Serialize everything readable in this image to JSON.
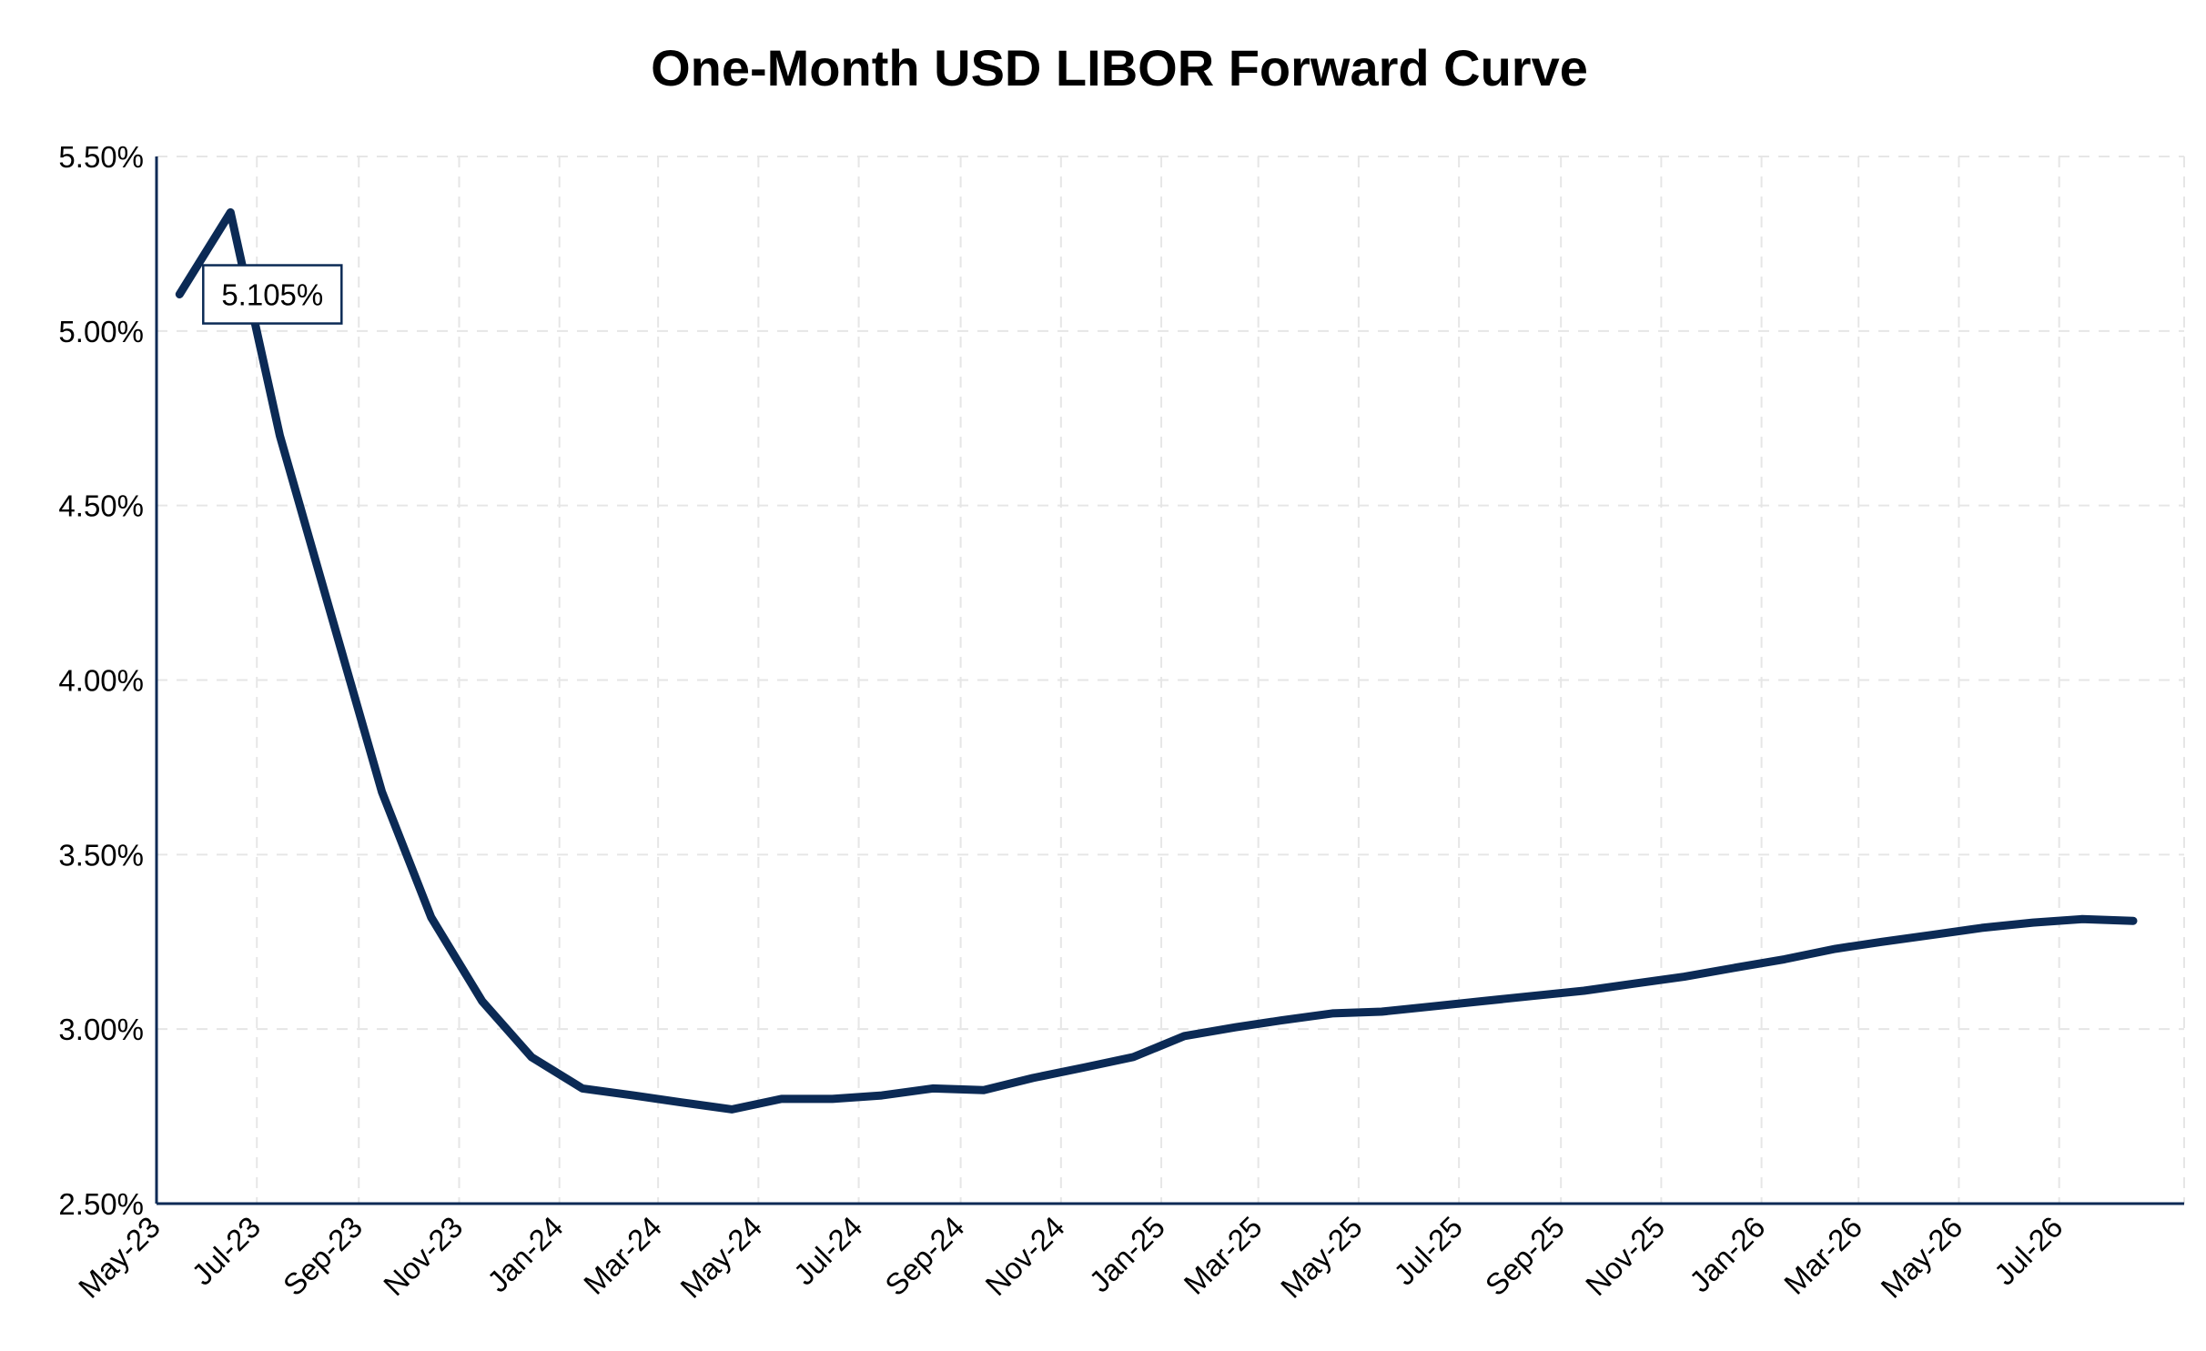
{
  "chart_data": {
    "type": "line",
    "title": "One-Month USD LIBOR Forward Curve",
    "xlabel": "",
    "ylabel": "",
    "ylim": [
      2.5,
      5.5
    ],
    "y_ticks": [
      "2.50%",
      "3.00%",
      "3.50%",
      "4.00%",
      "4.50%",
      "5.00%",
      "5.50%"
    ],
    "y_tick_values": [
      2.5,
      3.0,
      3.5,
      4.0,
      4.5,
      5.0,
      5.5
    ],
    "x_ticks": [
      "May-23",
      "Jul-23",
      "Sep-23",
      "Nov-23",
      "Jan-24",
      "Mar-24",
      "May-24",
      "Jul-24",
      "Sep-24",
      "Nov-24",
      "Jan-25",
      "Mar-25",
      "May-25",
      "Jul-25",
      "Sep-25",
      "Nov-25",
      "Jan-26",
      "Mar-26",
      "May-26",
      "Jul-26"
    ],
    "x_tick_dates": [
      "2023-05-01",
      "2023-07-01",
      "2023-09-01",
      "2023-11-01",
      "2024-01-01",
      "2024-03-01",
      "2024-05-01",
      "2024-07-01",
      "2024-09-01",
      "2024-11-01",
      "2025-01-01",
      "2025-03-01",
      "2025-05-01",
      "2025-07-01",
      "2025-09-01",
      "2025-11-01",
      "2026-01-01",
      "2026-03-01",
      "2026-05-01",
      "2026-07-01"
    ],
    "xlim": [
      "2023-05-01",
      "2026-09-15"
    ],
    "grid": true,
    "color": "#0b2a55",
    "series": [
      {
        "x": [
          "2023-05-15",
          "2023-06-15",
          "2023-07-15",
          "2023-08-15",
          "2023-09-15",
          "2023-10-15",
          "2023-11-15",
          "2023-12-15",
          "2024-01-15",
          "2024-02-15",
          "2024-03-15",
          "2024-04-15",
          "2024-05-15",
          "2024-06-15",
          "2024-07-15",
          "2024-08-15",
          "2024-09-15",
          "2024-10-15",
          "2024-11-15",
          "2024-12-15",
          "2025-01-15",
          "2025-02-15",
          "2025-03-15",
          "2025-04-15",
          "2025-05-15",
          "2025-06-15",
          "2025-07-15",
          "2025-08-15",
          "2025-09-15",
          "2025-10-15",
          "2025-11-15",
          "2025-12-15",
          "2026-01-15",
          "2026-02-15",
          "2026-03-15",
          "2026-04-15",
          "2026-05-15",
          "2026-06-15",
          "2026-07-15",
          "2026-08-15"
        ],
        "values": [
          5.105,
          5.34,
          4.7,
          4.19,
          3.68,
          3.32,
          3.08,
          2.92,
          2.83,
          2.81,
          2.79,
          2.77,
          2.8,
          2.8,
          2.81,
          2.83,
          2.825,
          2.86,
          2.89,
          2.92,
          2.98,
          3.005,
          3.025,
          3.045,
          3.05,
          3.065,
          3.08,
          3.095,
          3.11,
          3.13,
          3.15,
          3.175,
          3.2,
          3.23,
          3.25,
          3.27,
          3.29,
          3.305,
          3.315,
          3.31
        ]
      }
    ],
    "annotations": [
      {
        "text": "5.105%",
        "x": "2023-05-15",
        "y": 5.105
      }
    ]
  }
}
